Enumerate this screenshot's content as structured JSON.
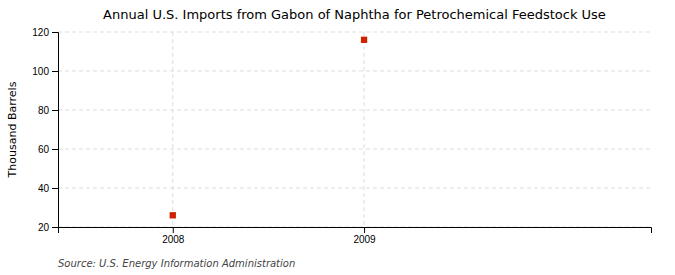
{
  "chart_data": {
    "type": "scatter",
    "title": "Annual U.S. Imports from Gabon of Naphtha for Petrochemical Feedstock Use",
    "ylabel": "Thousand Barrels",
    "annotations": [
      "Source: U.S. Energy Information Administration"
    ],
    "x": [
      2008,
      2009
    ],
    "values": [
      26,
      116
    ],
    "color": "#cc2200",
    "marker": "square",
    "xlim": [
      2007.4,
      2010.5
    ],
    "ylim": [
      20,
      120
    ],
    "xticks": [
      2008,
      2009
    ],
    "yticks": [
      20,
      40,
      60,
      80,
      100,
      120
    ],
    "grid": true
  }
}
